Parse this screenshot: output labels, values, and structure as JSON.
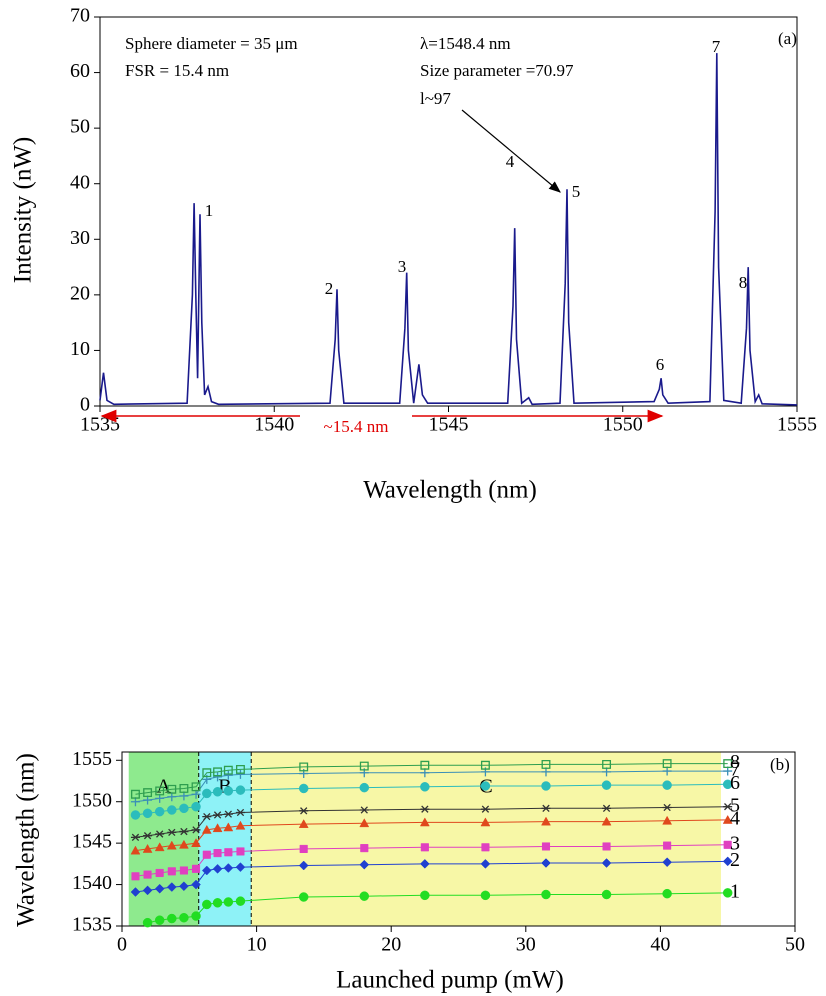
{
  "chart_data": [
    {
      "type": "line",
      "x_label": "Wavelength (nm)",
      "y_label": "Intensity (nW)",
      "xlim": [
        1535,
        1555
      ],
      "xticks": [
        1535,
        1540,
        1545,
        1550,
        1555
      ],
      "ylim": [
        0,
        70
      ],
      "yticks": [
        0,
        10,
        20,
        30,
        40,
        50,
        60,
        70
      ],
      "color": "#1a1a8c",
      "x": [
        1535.0,
        1535.1,
        1535.2,
        1535.4,
        1537.5,
        1537.65,
        1537.7,
        1537.75,
        1537.8,
        1537.87,
        1537.92,
        1538.0,
        1538.1,
        1538.2,
        1538.4,
        1541.6,
        1541.75,
        1541.8,
        1541.85,
        1542.0,
        1543.6,
        1543.75,
        1543.8,
        1543.85,
        1544.0,
        1544.15,
        1544.25,
        1544.4,
        1546.7,
        1546.85,
        1546.9,
        1546.95,
        1547.1,
        1547.3,
        1547.4,
        1548.2,
        1548.35,
        1548.4,
        1548.45,
        1548.6,
        1550.9,
        1551.05,
        1551.1,
        1551.15,
        1551.3,
        1552.5,
        1552.65,
        1552.7,
        1552.75,
        1552.9,
        1553.4,
        1553.55,
        1553.6,
        1553.65,
        1553.8,
        1553.9,
        1554.0,
        1555.0
      ],
      "values": [
        1,
        6,
        1,
        0.3,
        0.5,
        20,
        36.5,
        20,
        5,
        34.5,
        15,
        2,
        3.5,
        0.8,
        0.3,
        0.5,
        12,
        21,
        10,
        0.5,
        0.5,
        14,
        24,
        10,
        0.5,
        7.5,
        2,
        0.5,
        0.5,
        18,
        32,
        12,
        0.5,
        1.5,
        0.3,
        0.5,
        22,
        39,
        15,
        0.5,
        0.8,
        3,
        5,
        2,
        0.5,
        0.8,
        35,
        63.5,
        25,
        1,
        0.5,
        14,
        25,
        10,
        0.8,
        2,
        0.4,
        0.2
      ],
      "annotations": [
        "Sphere diameter = 35 μm",
        "FSR = 15.4 nm",
        "λ=1548.4 nm",
        "Size parameter =70.97",
        "l~97",
        "(a)"
      ],
      "peak_labels": [
        "1",
        "2",
        "3",
        "4",
        "5",
        "6",
        "7",
        "8"
      ],
      "range_label": "~15.4 nm",
      "range_color": "#e00000"
    },
    {
      "type": "scatter-line",
      "x_label": "Launched pump (mW)",
      "y_label": "Wavelength (nm)",
      "xlim": [
        0,
        50
      ],
      "xticks": [
        0,
        10,
        20,
        30,
        40,
        50
      ],
      "ylim": [
        1535,
        1556
      ],
      "yticks": [
        1535,
        1540,
        1545,
        1550,
        1555
      ],
      "annotations": [
        "(b)"
      ],
      "regions": [
        {
          "label": "A",
          "x": [
            0.5,
            5.7
          ],
          "color": "#8eea8e"
        },
        {
          "label": "B",
          "x": [
            5.7,
            9.6
          ],
          "color": "#8ef2f7"
        },
        {
          "label": "C",
          "x": [
            9.6,
            44.5
          ],
          "color": "#f7f7a6"
        }
      ],
      "x": [
        1,
        1.9,
        2.8,
        3.7,
        4.6,
        5.5,
        6.3,
        7.1,
        7.9,
        8.8,
        13.5,
        18,
        22.5,
        27,
        31.5,
        36,
        40.5,
        45
      ],
      "series": [
        {
          "name": "1",
          "color": "#22dd22",
          "marker": "circle",
          "values": [
            null,
            1535.4,
            1535.7,
            1535.9,
            1536.0,
            1536.2,
            1537.6,
            1537.8,
            1537.9,
            1538.0,
            1538.5,
            1538.6,
            1538.7,
            1538.7,
            1538.8,
            1538.8,
            1538.9,
            1539.0
          ]
        },
        {
          "name": "2",
          "color": "#2040d0",
          "marker": "diamond",
          "values": [
            1539.1,
            1539.3,
            1539.5,
            1539.7,
            1539.8,
            1540.0,
            1541.7,
            1541.9,
            1542.0,
            1542.1,
            1542.3,
            1542.4,
            1542.5,
            1542.5,
            1542.6,
            1542.6,
            1542.7,
            1542.8
          ]
        },
        {
          "name": "3",
          "color": "#e040c0",
          "marker": "square",
          "values": [
            1541.0,
            1541.2,
            1541.4,
            1541.6,
            1541.7,
            1541.9,
            1543.6,
            1543.8,
            1543.9,
            1544.0,
            1544.3,
            1544.4,
            1544.5,
            1544.5,
            1544.6,
            1544.6,
            1544.7,
            1544.8
          ]
        },
        {
          "name": "4",
          "color": "#e0481d",
          "marker": "triangle",
          "values": [
            1544.1,
            1544.3,
            1544.5,
            1544.7,
            1544.8,
            1545.0,
            1546.6,
            1546.8,
            1546.9,
            1547.1,
            1547.3,
            1547.4,
            1547.5,
            1547.5,
            1547.6,
            1547.6,
            1547.7,
            1547.8
          ]
        },
        {
          "name": "5",
          "color": "#333333",
          "marker": "star",
          "values": [
            1545.7,
            1545.9,
            1546.1,
            1546.3,
            1546.4,
            1546.6,
            1548.2,
            1548.4,
            1548.5,
            1548.7,
            1548.9,
            1549.0,
            1549.1,
            1549.1,
            1549.2,
            1549.2,
            1549.3,
            1549.4
          ]
        },
        {
          "name": "6",
          "color": "#2bbcbc",
          "marker": "circle",
          "values": [
            1548.4,
            1548.6,
            1548.8,
            1549.0,
            1549.2,
            1549.4,
            1551.0,
            1551.2,
            1551.3,
            1551.4,
            1551.6,
            1551.7,
            1551.8,
            1551.9,
            1551.9,
            1552.0,
            1552.0,
            1552.1
          ]
        },
        {
          "name": "7",
          "color": "#3a8fb7",
          "marker": "plus",
          "values": [
            1550.0,
            1550.2,
            1550.4,
            1550.6,
            1550.7,
            1550.9,
            1552.7,
            1553.0,
            1553.2,
            1553.3,
            1553.4,
            1553.5,
            1553.5,
            1553.6,
            1553.6,
            1553.6,
            1553.7,
            1553.7
          ]
        },
        {
          "name": "8",
          "color": "#2e9e4f",
          "marker": "square-open",
          "values": [
            1550.9,
            1551.1,
            1551.3,
            1551.5,
            1551.6,
            1551.8,
            1553.5,
            1553.6,
            1553.8,
            1553.9,
            1554.2,
            1554.3,
            1554.4,
            1554.4,
            1554.5,
            1554.5,
            1554.6,
            1554.6
          ]
        }
      ]
    }
  ]
}
